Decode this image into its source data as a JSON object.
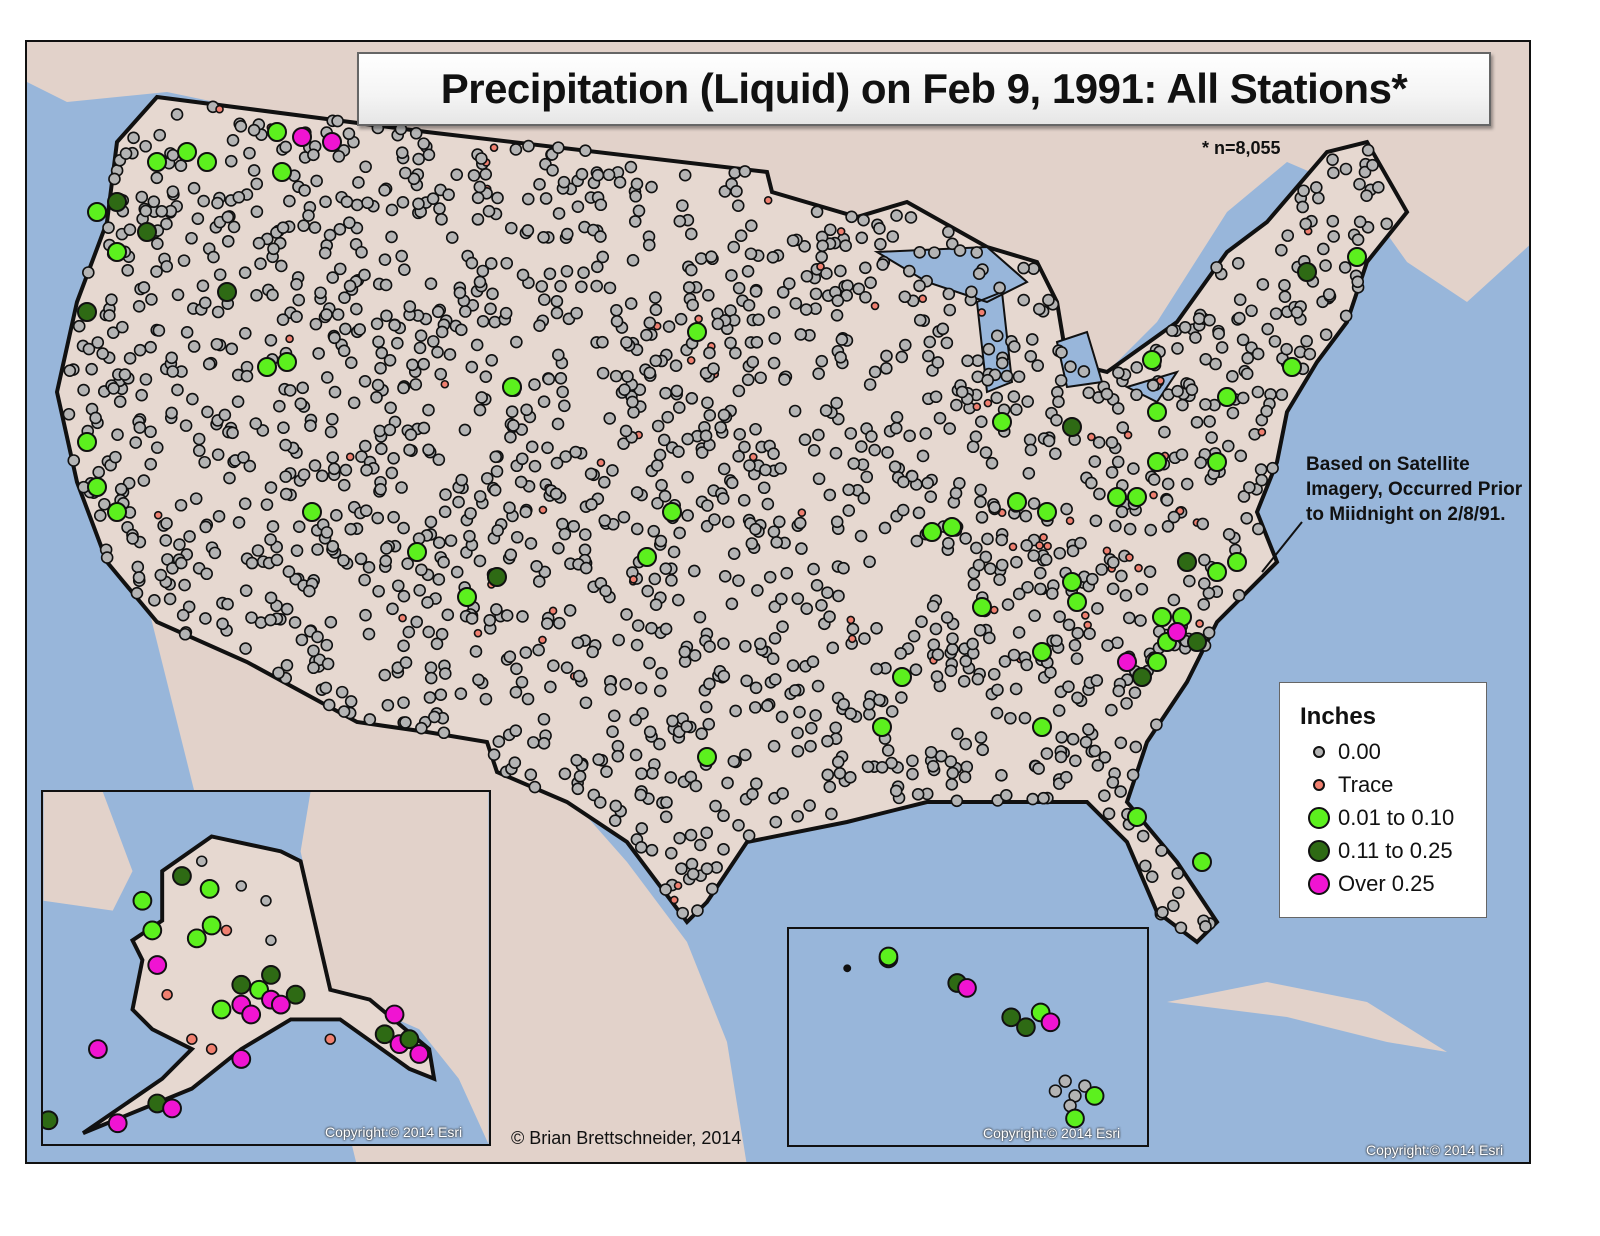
{
  "title": "Precipitation (Liquid) on Feb 9, 1991: All Stations*",
  "footnote": "* n=8,055",
  "annotation": "Based on Satellite Imagery, Occurred Prior to Miidnight on 2/8/91.",
  "credit": "© Brian Brettschneider, 2014",
  "copyright_alaska": "Copyright:© 2014 Esri",
  "copyright_hawaii": "Copyright:© 2014 Esri",
  "copyright_main": "Copyright:© 2014 Esri",
  "legend": {
    "title": "Inches",
    "items": [
      {
        "label": "0.00",
        "color": "#b4b4b4",
        "size": 12
      },
      {
        "label": "Trace",
        "color": "#f08070",
        "size": 12
      },
      {
        "label": "0.01 to 0.10",
        "color": "#5cf01e",
        "size": 22
      },
      {
        "label": "0.11 to 0.25",
        "color": "#2e6a14",
        "size": 22
      },
      {
        "label": "Over 0.25",
        "color": "#f014d2",
        "size": 22
      }
    ]
  },
  "colors": {
    "water": "#98b6da",
    "land": "#e6d8d0",
    "zero": "#b4b4b4",
    "trace": "#f08070",
    "light": "#5cf01e",
    "moderate": "#2e6a14",
    "heavy": "#f014d2"
  },
  "chart_data": {
    "type": "scatter",
    "title": "Precipitation (Liquid) on Feb 9, 1991: All Stations*",
    "n_stations": 8055,
    "legend_title": "Inches",
    "categories": [
      "0.00",
      "Trace",
      "0.01 to 0.10",
      "0.11 to 0.25",
      "Over 0.25"
    ],
    "regions": [
      "Contiguous US",
      "Alaska inset",
      "Hawaii inset"
    ],
    "notable_precip_areas": [
      {
        "region": "Pacific Northwest (WA/OR coast, N Idaho)",
        "categories": [
          "0.01 to 0.10",
          "0.11 to 0.25",
          "Over 0.25"
        ]
      },
      {
        "region": "Carolinas / Southeast coast",
        "categories": [
          "0.01 to 0.10",
          "0.11 to 0.25",
          "Over 0.25"
        ]
      },
      {
        "region": "Ohio Valley / Appalachians",
        "categories": [
          "Trace",
          "0.01 to 0.10"
        ]
      },
      {
        "region": "Southern Alaska coast & Panhandle",
        "categories": [
          "0.01 to 0.10",
          "0.11 to 0.25",
          "Over 0.25"
        ]
      },
      {
        "region": "Hawaii windward islands",
        "categories": [
          "0.01 to 0.10",
          "0.11 to 0.25",
          "Over 0.25"
        ]
      }
    ],
    "dominant_category": "0.00"
  }
}
